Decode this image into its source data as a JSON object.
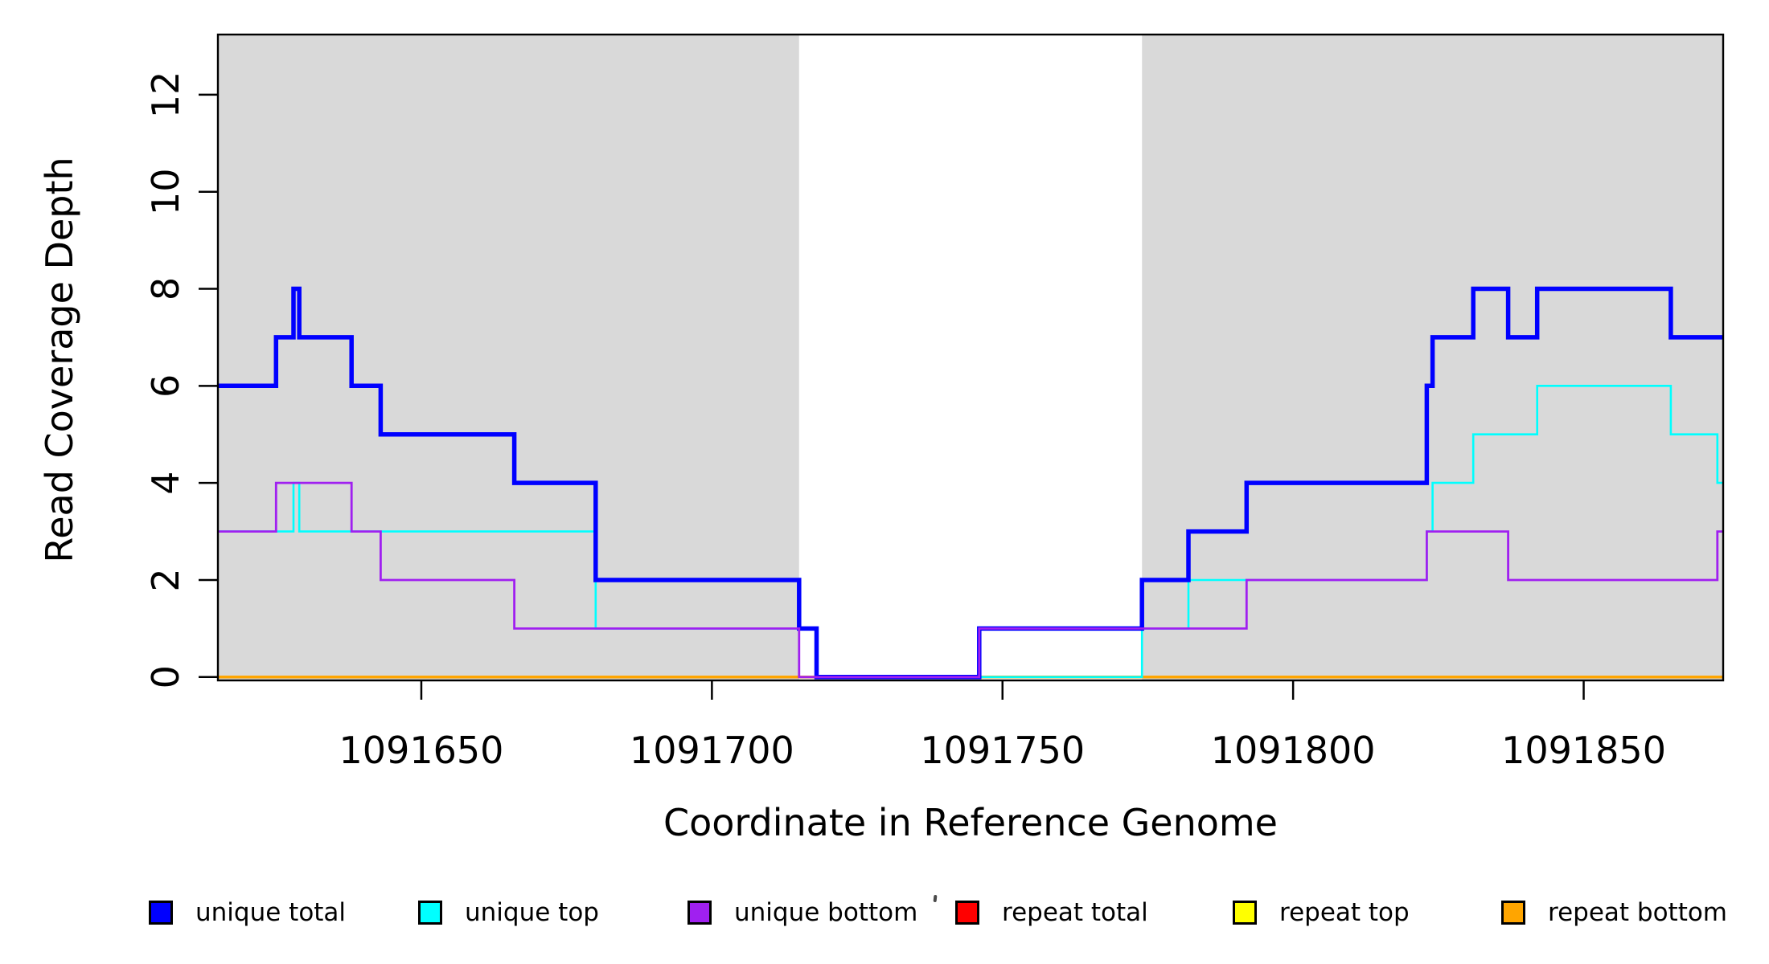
{
  "chart_data": {
    "type": "line",
    "step_mode": "after",
    "title": "",
    "xlabel": "Coordinate in Reference Genome",
    "ylabel": "Read Coverage Depth",
    "xlim": [
      1091615,
      1091874
    ],
    "ylim": [
      -0.07,
      13.24
    ],
    "grid": false,
    "background_color": "#ffffff",
    "shade_color": "#d9d9d9",
    "axis_color": "#000000",
    "x_ticks": {
      "values": [
        1091650,
        1091700,
        1091750,
        1091800,
        1091850
      ],
      "labels": [
        "1091650",
        "1091700",
        "1091750",
        "1091800",
        "1091850"
      ]
    },
    "y_ticks": {
      "values": [
        0,
        2,
        4,
        6,
        8,
        10,
        12
      ],
      "labels": [
        "0",
        "2",
        "4",
        "6",
        "8",
        "10",
        "12"
      ]
    },
    "shaded_regions": [
      {
        "x0": 1091615,
        "x1": 1091715
      },
      {
        "x0": 1091774,
        "x1": 1091874
      }
    ],
    "x_end": 1091874,
    "series": [
      {
        "name": "repeat total",
        "color": "#ff0000",
        "width": 2.5,
        "points": [
          [
            1091615,
            0
          ]
        ]
      },
      {
        "name": "repeat top",
        "color": "#ffff00",
        "width": 2.5,
        "points": [
          [
            1091615,
            0
          ]
        ]
      },
      {
        "name": "repeat bottom",
        "color": "#ffa500",
        "width": 3.5,
        "points": [
          [
            1091615,
            0
          ]
        ]
      },
      {
        "name": "unique top",
        "color": "#00ffff",
        "width": 2.6,
        "points": [
          [
            1091615,
            3
          ],
          [
            1091628,
            4
          ],
          [
            1091629,
            3
          ],
          [
            1091680,
            1
          ],
          [
            1091718,
            0
          ],
          [
            1091774,
            1
          ],
          [
            1091782,
            2
          ],
          [
            1091823,
            3
          ],
          [
            1091824,
            4
          ],
          [
            1091831,
            5
          ],
          [
            1091842,
            6
          ],
          [
            1091865,
            5
          ],
          [
            1091873,
            4
          ]
        ]
      },
      {
        "name": "unique total",
        "color": "#0000ff",
        "width": 5.5,
        "points": [
          [
            1091615,
            6
          ],
          [
            1091625,
            7
          ],
          [
            1091628,
            8
          ],
          [
            1091629,
            7
          ],
          [
            1091638,
            6
          ],
          [
            1091643,
            5
          ],
          [
            1091666,
            4
          ],
          [
            1091680,
            2
          ],
          [
            1091715,
            1
          ],
          [
            1091718,
            0
          ],
          [
            1091746,
            1
          ],
          [
            1091774,
            2
          ],
          [
            1091782,
            3
          ],
          [
            1091792,
            4
          ],
          [
            1091823,
            6
          ],
          [
            1091824,
            7
          ],
          [
            1091831,
            8
          ],
          [
            1091837,
            7
          ],
          [
            1091842,
            8
          ],
          [
            1091865,
            7
          ]
        ]
      },
      {
        "name": "unique bottom",
        "color": "#a020f0",
        "width": 2.8,
        "points": [
          [
            1091615,
            3
          ],
          [
            1091625,
            4
          ],
          [
            1091638,
            3
          ],
          [
            1091643,
            2
          ],
          [
            1091666,
            1
          ],
          [
            1091715,
            0
          ],
          [
            1091746,
            1
          ],
          [
            1091792,
            2
          ],
          [
            1091823,
            3
          ],
          [
            1091837,
            2
          ],
          [
            1091873,
            3
          ]
        ]
      }
    ],
    "legend": {
      "position": "bottom-horizontal",
      "items": [
        {
          "label": "unique total",
          "color": "#0000ff"
        },
        {
          "label": "unique top",
          "color": "#00ffff"
        },
        {
          "label": "unique bottom",
          "color": "#a020f0"
        },
        {
          "label": "repeat total",
          "color": "#ff0000"
        },
        {
          "label": "repeat top",
          "color": "#ffff00"
        },
        {
          "label": "repeat bottom",
          "color": "#ffa500"
        }
      ]
    }
  }
}
